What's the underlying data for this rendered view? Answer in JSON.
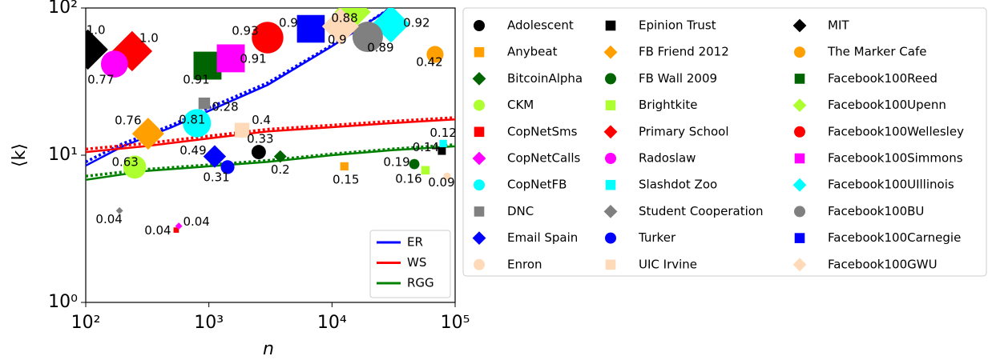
{
  "chart_data": {
    "type": "scatter",
    "x_label": "n",
    "y_label": "⟨k⟩",
    "xscale": "log",
    "yscale": "log",
    "xlim": [
      100,
      100000
    ],
    "ylim": [
      1,
      100
    ],
    "xticks": [
      {
        "value": 100,
        "label": "10²"
      },
      {
        "value": 1000,
        "label": "10³"
      },
      {
        "value": 10000,
        "label": "10⁴"
      },
      {
        "value": 100000,
        "label": "10⁵"
      }
    ],
    "yticks": [
      {
        "value": 1,
        "label": "10⁰"
      },
      {
        "value": 10,
        "label": "10¹"
      },
      {
        "value": 100,
        "label": "10²"
      }
    ],
    "series": [
      {
        "name": "Adolescent",
        "color": "#000000",
        "marker": "circle",
        "x": [
          2540
        ],
        "values": [
          10.5
        ],
        "scores": [
          0.33
        ]
      },
      {
        "name": "Anybeat",
        "color": "#ff9f00",
        "marker": "square",
        "x": [
          12600
        ],
        "values": [
          8.4
        ],
        "scores": [
          0.15
        ]
      },
      {
        "name": "BitcoinAlpha",
        "color": "#006400",
        "marker": "diamond",
        "x": [
          3800
        ],
        "values": [
          9.8
        ],
        "scores": [
          0.2
        ]
      },
      {
        "name": "CKM",
        "color": "#adff2f",
        "marker": "circle",
        "x": [
          250
        ],
        "values": [
          8.3
        ],
        "scores": [
          0.63
        ]
      },
      {
        "name": "CopNetSms",
        "color": "#ff0000",
        "marker": "square",
        "x": [
          543
        ],
        "values": [
          3.1
        ],
        "scores": [
          0.04
        ]
      },
      {
        "name": "CopNetCalls",
        "color": "#ff00ff",
        "marker": "diamond",
        "x": [
          570
        ],
        "values": [
          3.3
        ],
        "scores": [
          0.04
        ]
      },
      {
        "name": "CopNetFB",
        "color": "#00ffff",
        "marker": "circle",
        "x": [
          800
        ],
        "values": [
          16.5
        ],
        "scores": [
          0.81
        ]
      },
      {
        "name": "DNC",
        "color": "#808080",
        "marker": "square",
        "x": [
          918
        ],
        "values": [
          22.5
        ],
        "scores": [
          0.28
        ]
      },
      {
        "name": "Email Spain",
        "color": "#0000ff",
        "marker": "diamond",
        "x": [
          1115
        ],
        "values": [
          9.8
        ],
        "scores": [
          0.49
        ]
      },
      {
        "name": "Enron",
        "color": "#ffdab9",
        "marker": "circle",
        "x": [
          86000
        ],
        "values": [
          7.2
        ],
        "scores": [
          0.09
        ]
      },
      {
        "name": "Epinion Trust",
        "color": "#000000",
        "marker": "square",
        "x": [
          78000
        ],
        "values": [
          10.7
        ],
        "scores": [
          0.14
        ]
      },
      {
        "name": "FB Friend 2012",
        "color": "#ff9f00",
        "marker": "diamond",
        "x": [
          321
        ],
        "values": [
          14.0
        ],
        "scores": [
          0.76
        ]
      },
      {
        "name": "FB Wall 2009",
        "color": "#006400",
        "marker": "circle",
        "x": [
          46600
        ],
        "values": [
          8.7
        ],
        "scores": [
          0.19
        ]
      },
      {
        "name": "Brightkite",
        "color": "#adff2f",
        "marker": "square",
        "x": [
          57400
        ],
        "values": [
          7.9
        ],
        "scores": [
          0.16
        ]
      },
      {
        "name": "Primary School",
        "color": "#ff0000",
        "marker": "diamond",
        "x": [
          238
        ],
        "values": [
          50.9
        ],
        "scores": [
          1.0
        ],
        "score_labels": [
          "1.0"
        ]
      },
      {
        "name": "Radoslaw",
        "color": "#ff00ff",
        "marker": "circle",
        "x": [
          171
        ],
        "values": [
          41.6
        ],
        "scores": [
          0.77
        ]
      },
      {
        "name": "Slashdot Zoo",
        "color": "#00ffff",
        "marker": "square",
        "x": [
          80000
        ],
        "values": [
          12.0
        ],
        "scores": [
          0.12
        ]
      },
      {
        "name": "Student Cooperation",
        "color": "#808080",
        "marker": "diamond",
        "x": [
          188
        ],
        "values": [
          4.2
        ],
        "scores": [
          0.04
        ]
      },
      {
        "name": "Turker",
        "color": "#0000ff",
        "marker": "circle",
        "x": [
          1419
        ],
        "values": [
          8.3
        ],
        "scores": [
          0.31
        ]
      },
      {
        "name": "UIC Irvine",
        "color": "#ffdab9",
        "marker": "square",
        "x": [
          1858
        ],
        "values": [
          14.8
        ],
        "scores": [
          0.4
        ]
      },
      {
        "name": "MIT",
        "color": "#000000",
        "marker": "diamond",
        "x": [
          104
        ],
        "values": [
          52.2
        ],
        "scores": [
          1.0
        ],
        "score_labels": [
          "1.0"
        ]
      },
      {
        "name": "The Marker Cafe",
        "color": "#ff9f00",
        "marker": "circle",
        "x": [
          68700
        ],
        "values": [
          48.4
        ],
        "scores": [
          0.42
        ]
      },
      {
        "name": "Facebook100Reed",
        "color": "#006400",
        "marker": "square",
        "x": [
          975
        ],
        "values": [
          40.6
        ],
        "scores": [
          0.91
        ]
      },
      {
        "name": "Facebook100Upenn",
        "color": "#adff2f",
        "marker": "diamond",
        "x": [
          14700
        ],
        "values": [
          94
        ],
        "scores": [
          0.88
        ]
      },
      {
        "name": "Facebook100Wellesley",
        "color": "#ff0000",
        "marker": "circle",
        "x": [
          2999
        ],
        "values": [
          62.9
        ],
        "scores": [
          0.93
        ]
      },
      {
        "name": "Facebook100Simmons",
        "color": "#ff00ff",
        "marker": "square",
        "x": [
          1507
        ],
        "values": [
          45.5
        ],
        "scores": [
          0.91
        ]
      },
      {
        "name": "Facebook100UIllinois",
        "color": "#00ffff",
        "marker": "diamond",
        "x": [
          30100
        ],
        "values": [
          77.9
        ],
        "scores": [
          0.92
        ]
      },
      {
        "name": "Facebook100BU",
        "color": "#808080",
        "marker": "circle",
        "x": [
          19500
        ],
        "values": [
          63.7
        ],
        "scores": [
          0.89
        ]
      },
      {
        "name": "Facebook100Carnegie",
        "color": "#0000ff",
        "marker": "square",
        "x": [
          6730
        ],
        "values": [
          72.2
        ],
        "scores": [
          0.9
        ]
      },
      {
        "name": "Facebook100GWU",
        "color": "#ffdab9",
        "marker": "diamond",
        "x": [
          11700
        ],
        "values": [
          75
        ],
        "scores": [
          0.9
        ]
      }
    ],
    "lines": [
      {
        "name": "ER",
        "color": "#0000ff",
        "x": [
          100,
          200,
          500,
          1000,
          3000,
          10000,
          30000
        ],
        "values": [
          8.5,
          11.5,
          15.5,
          20,
          30,
          55,
          100
        ],
        "dotted_values": [
          9,
          12,
          16,
          21,
          31,
          56,
          100
        ]
      },
      {
        "name": "WS",
        "color": "#ff0000",
        "x": [
          100,
          300,
          1000,
          3000,
          10000,
          30000,
          100000
        ],
        "values": [
          10.5,
          11.5,
          13,
          14.5,
          15.5,
          16.5,
          17.5
        ],
        "dotted_values": [
          11,
          12,
          13.5,
          15,
          16,
          17,
          18
        ]
      },
      {
        "name": "RGG",
        "color": "#008000",
        "x": [
          100,
          300,
          1000,
          3000,
          10000,
          30000,
          100000
        ],
        "values": [
          6.8,
          7.8,
          8.4,
          9,
          10,
          10.8,
          11.5
        ],
        "dotted_values": [
          7.2,
          8,
          8.6,
          9.2,
          10.2,
          11,
          11.8
        ]
      }
    ]
  }
}
